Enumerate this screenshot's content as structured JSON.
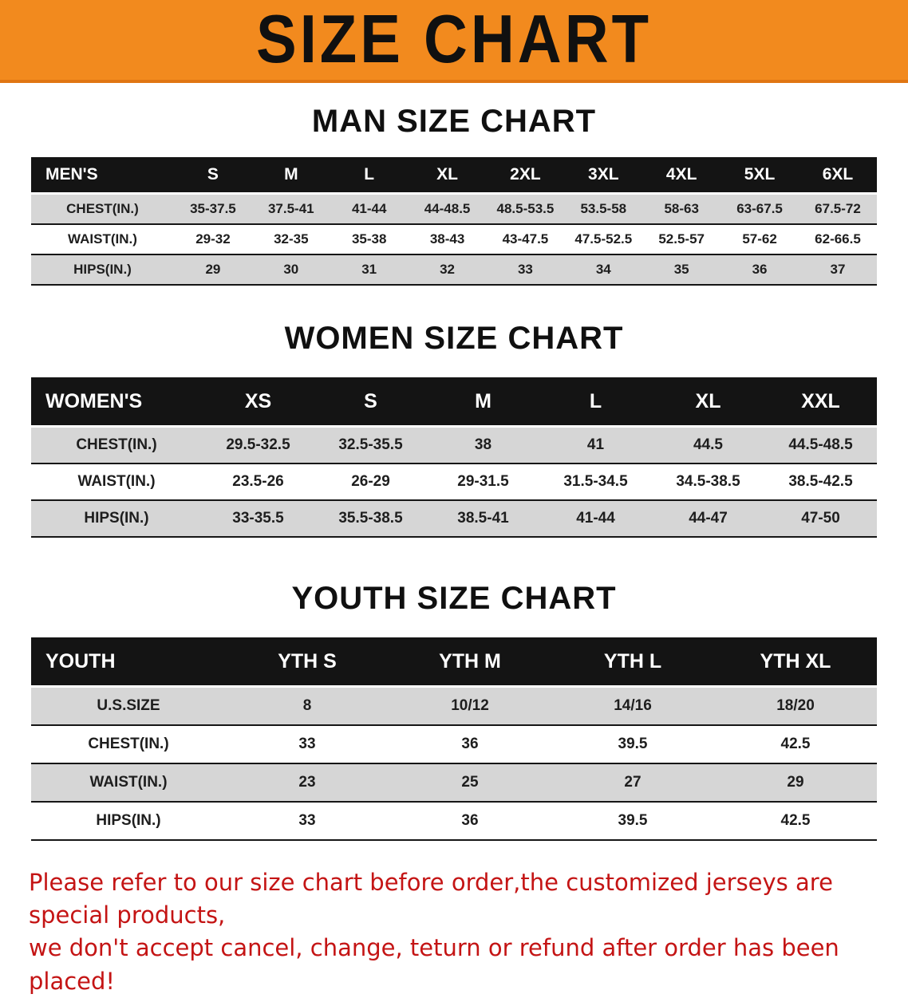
{
  "banner": {
    "title": "SIZE CHART"
  },
  "colors": {
    "banner_bg": "#f28a1e",
    "table_header_bg": "#141414",
    "row_shaded_bg": "#d6d6d6",
    "footer_text": "#c41414"
  },
  "chart_data": [
    {
      "type": "table",
      "title": "MAN SIZE CHART",
      "columns": [
        "MEN'S",
        "S",
        "M",
        "L",
        "XL",
        "2XL",
        "3XL",
        "4XL",
        "5XL",
        "6XL"
      ],
      "rows": [
        [
          "CHEST(IN.)",
          "35-37.5",
          "37.5-41",
          "41-44",
          "44-48.5",
          "48.5-53.5",
          "53.5-58",
          "58-63",
          "63-67.5",
          "67.5-72"
        ],
        [
          "WAIST(IN.)",
          "29-32",
          "32-35",
          "35-38",
          "38-43",
          "43-47.5",
          "47.5-52.5",
          "52.5-57",
          "57-62",
          "62-66.5"
        ],
        [
          "HIPS(IN.)",
          "29",
          "30",
          "31",
          "32",
          "33",
          "34",
          "35",
          "36",
          "37"
        ]
      ]
    },
    {
      "type": "table",
      "title": "WOMEN SIZE CHART",
      "columns": [
        "WOMEN'S",
        "XS",
        "S",
        "M",
        "L",
        "XL",
        "XXL"
      ],
      "rows": [
        [
          "CHEST(IN.)",
          "29.5-32.5",
          "32.5-35.5",
          "38",
          "41",
          "44.5",
          "44.5-48.5"
        ],
        [
          "WAIST(IN.)",
          "23.5-26",
          "26-29",
          "29-31.5",
          "31.5-34.5",
          "34.5-38.5",
          "38.5-42.5"
        ],
        [
          "HIPS(IN.)",
          "33-35.5",
          "35.5-38.5",
          "38.5-41",
          "41-44",
          "44-47",
          "47-50"
        ]
      ]
    },
    {
      "type": "table",
      "title": "YOUTH SIZE CHART",
      "columns": [
        "YOUTH",
        "YTH S",
        "YTH M",
        "YTH L",
        "YTH XL"
      ],
      "rows": [
        [
          "U.S.SIZE",
          "8",
          "10/12",
          "14/16",
          "18/20"
        ],
        [
          "CHEST(IN.)",
          "33",
          "36",
          "39.5",
          "42.5"
        ],
        [
          "WAIST(IN.)",
          "23",
          "25",
          "27",
          "29"
        ],
        [
          "HIPS(IN.)",
          "33",
          "36",
          "39.5",
          "42.5"
        ]
      ]
    }
  ],
  "footer": {
    "lines": [
      "Please refer to our size chart before order,the customized jerseys are special products,",
      "we don't accept cancel, change, teturn or refund after order has been placed!"
    ]
  }
}
